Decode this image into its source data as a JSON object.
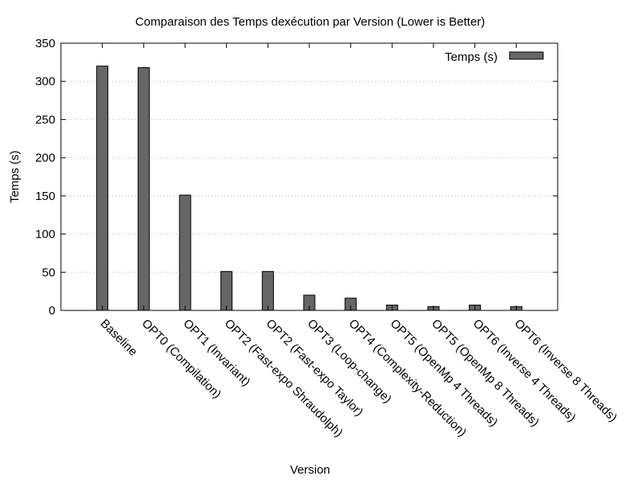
{
  "chart_data": {
    "type": "bar",
    "title": "Comparaison des Temps dexécution par Version (Lower is Better)",
    "xlabel": "Version",
    "ylabel": "Temps (s)",
    "ylim": [
      0,
      350
    ],
    "yticks": [
      0,
      50,
      100,
      150,
      200,
      250,
      300,
      350
    ],
    "grid": true,
    "legend_position": "top-right",
    "categories": [
      "Baseline",
      "OPT0 (Compilation)",
      "OPT1 (Invariant)",
      "OPT2 (Fast-expo Shraudolph)",
      "OPT2 (Fast-expo Taylor)",
      "OPT3 (Loop-change)",
      "OPT4 (Complexity-Reduction)",
      "OPT5 (OpenMp 4 Threads)",
      "OPT5 (OpenMp 8 Threads)",
      "OPT6 (Inverse 4 Threads)",
      "OPT6 (Inverse 8 Threads)"
    ],
    "series": [
      {
        "name": "Temps (s)",
        "color": "#666666",
        "values": [
          320,
          318,
          151,
          51,
          51,
          20,
          16,
          7,
          5,
          7,
          5
        ]
      }
    ]
  }
}
